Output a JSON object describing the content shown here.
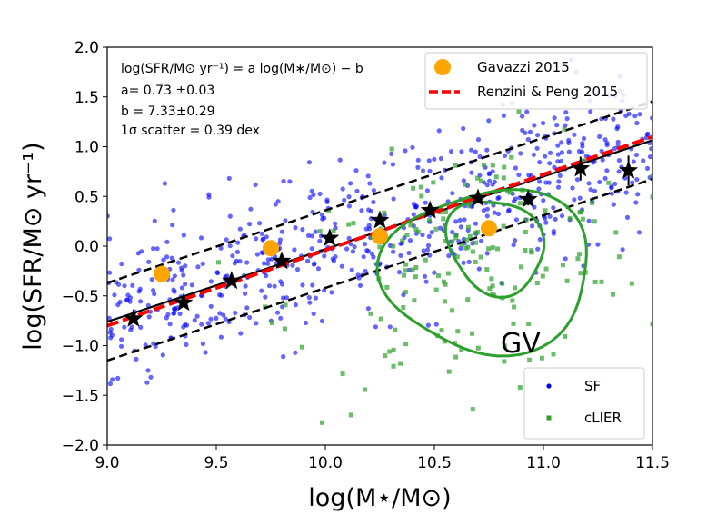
{
  "chart_data": {
    "type": "scatter",
    "xlabel": "log(M⋆/M⊙)",
    "ylabel": "log(SFR/M⊙ yr⁻¹)",
    "xlim": [
      9.0,
      11.5
    ],
    "ylim": [
      -2.0,
      2.0
    ],
    "xticks": [
      "9.0",
      "9.5",
      "10.0",
      "10.5",
      "11.0",
      "11.5"
    ],
    "yticks": [
      "−2.0",
      "−1.5",
      "−1.0",
      "−0.5",
      "0.0",
      "0.5",
      "1.0",
      "1.5",
      "2.0"
    ],
    "annotation": {
      "formula": "log(SFR/M⊙ yr⁻¹) = a log(M∗/M⊙) − b",
      "a": "a= 0.73 ±0.03",
      "b": "b = 7.33±0.29",
      "scatter": "1σ scatter = 0.39 dex"
    },
    "fit": {
      "slope": 0.73,
      "intercept": -7.33,
      "scatter_dex": 0.39
    },
    "renzini_peng": {
      "name": "Renzini & Peng 2015",
      "slope": 0.76,
      "intercept": -7.64,
      "color": "#ff0000"
    },
    "gavazzi": {
      "name": "Gavazzi 2015",
      "color": "#ffa500",
      "x": [
        9.25,
        9.75,
        10.25,
        10.75
      ],
      "y": [
        -0.28,
        -0.02,
        0.1,
        0.18
      ]
    },
    "binned_medians": {
      "x": [
        9.12,
        9.35,
        9.57,
        9.8,
        10.02,
        10.25,
        10.48,
        10.7,
        10.93,
        11.17,
        11.39
      ],
      "y": [
        -0.73,
        -0.57,
        -0.35,
        -0.15,
        0.08,
        0.26,
        0.36,
        0.48,
        0.47,
        0.78,
        0.76
      ],
      "yerr": [
        0.04,
        0.04,
        0.03,
        0.03,
        0.03,
        0.04,
        0.04,
        0.05,
        0.06,
        0.12,
        0.15
      ]
    },
    "gv_label": "GV",
    "gv_color": "#2ca02c",
    "series": [
      {
        "name": "SF",
        "color": "#0000ff",
        "marker": "circle",
        "count": 620,
        "x_range": [
          9.0,
          11.5
        ],
        "relation": "fit",
        "sigma": 0.39
      },
      {
        "name": "cLIER",
        "color": "#2ca02c",
        "marker": "square",
        "count": 170,
        "x_range": [
          9.0,
          11.5
        ],
        "center": [
          10.65,
          -0.2
        ],
        "sigma": 0.6
      }
    ],
    "gv_contours": [
      {
        "level": "outer",
        "center": [
          10.75,
          -0.25
        ],
        "semi_axes": [
          0.5,
          0.85
        ],
        "angle_deg": 28
      },
      {
        "level": "inner",
        "center": [
          10.78,
          0.0
        ],
        "semi_axes": [
          0.22,
          0.5
        ],
        "angle_deg": 22
      }
    ]
  }
}
